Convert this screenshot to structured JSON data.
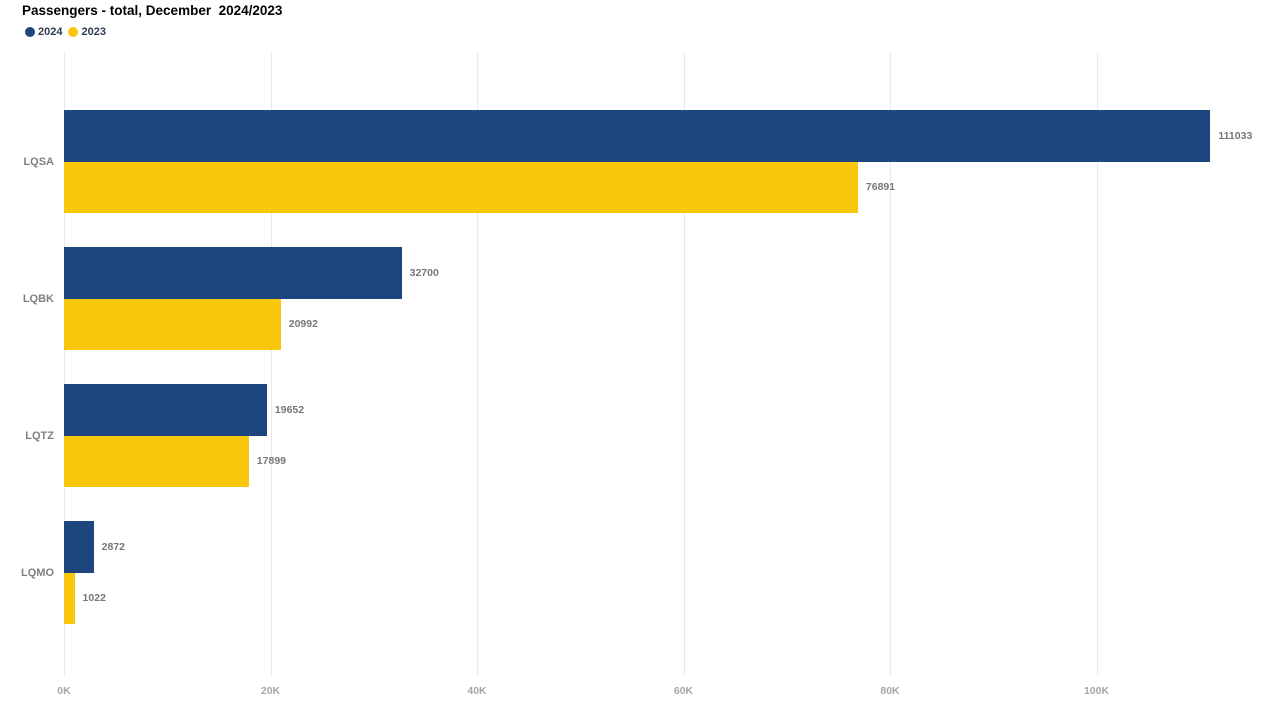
{
  "chart": {
    "title": "Passengers - total, December  2024/2023"
  },
  "chart_data": {
    "type": "bar",
    "orientation": "horizontal",
    "title": "Passengers - total, December  2024/2023",
    "categories": [
      "LQSA",
      "LQBK",
      "LQTZ",
      "LQMO"
    ],
    "series": [
      {
        "name": "2024",
        "color": "#1c467d",
        "values": [
          111033,
          32700,
          19652,
          2872
        ]
      },
      {
        "name": "2023",
        "color": "#f8c60a",
        "values": [
          76891,
          20992,
          17899,
          1022
        ]
      }
    ],
    "xlabel": "",
    "ylabel": "",
    "x_ticks": [
      "0K",
      "20K",
      "40K",
      "60K",
      "80K",
      "100K"
    ],
    "x_tick_values": [
      0,
      20000,
      40000,
      60000,
      80000,
      100000
    ],
    "xlim": [
      0,
      116800
    ],
    "grid": "vertical-only",
    "legend_position": "top-left",
    "data_labels": true,
    "style": {
      "background": "#ffffff",
      "gridline_color": "#e8e8e8",
      "tick_label_color": "#a6a6a6",
      "category_label_color": "#808080",
      "value_label_color": "#777777",
      "legend_text_color": "#2e3b52",
      "title_color": "#000000"
    }
  }
}
